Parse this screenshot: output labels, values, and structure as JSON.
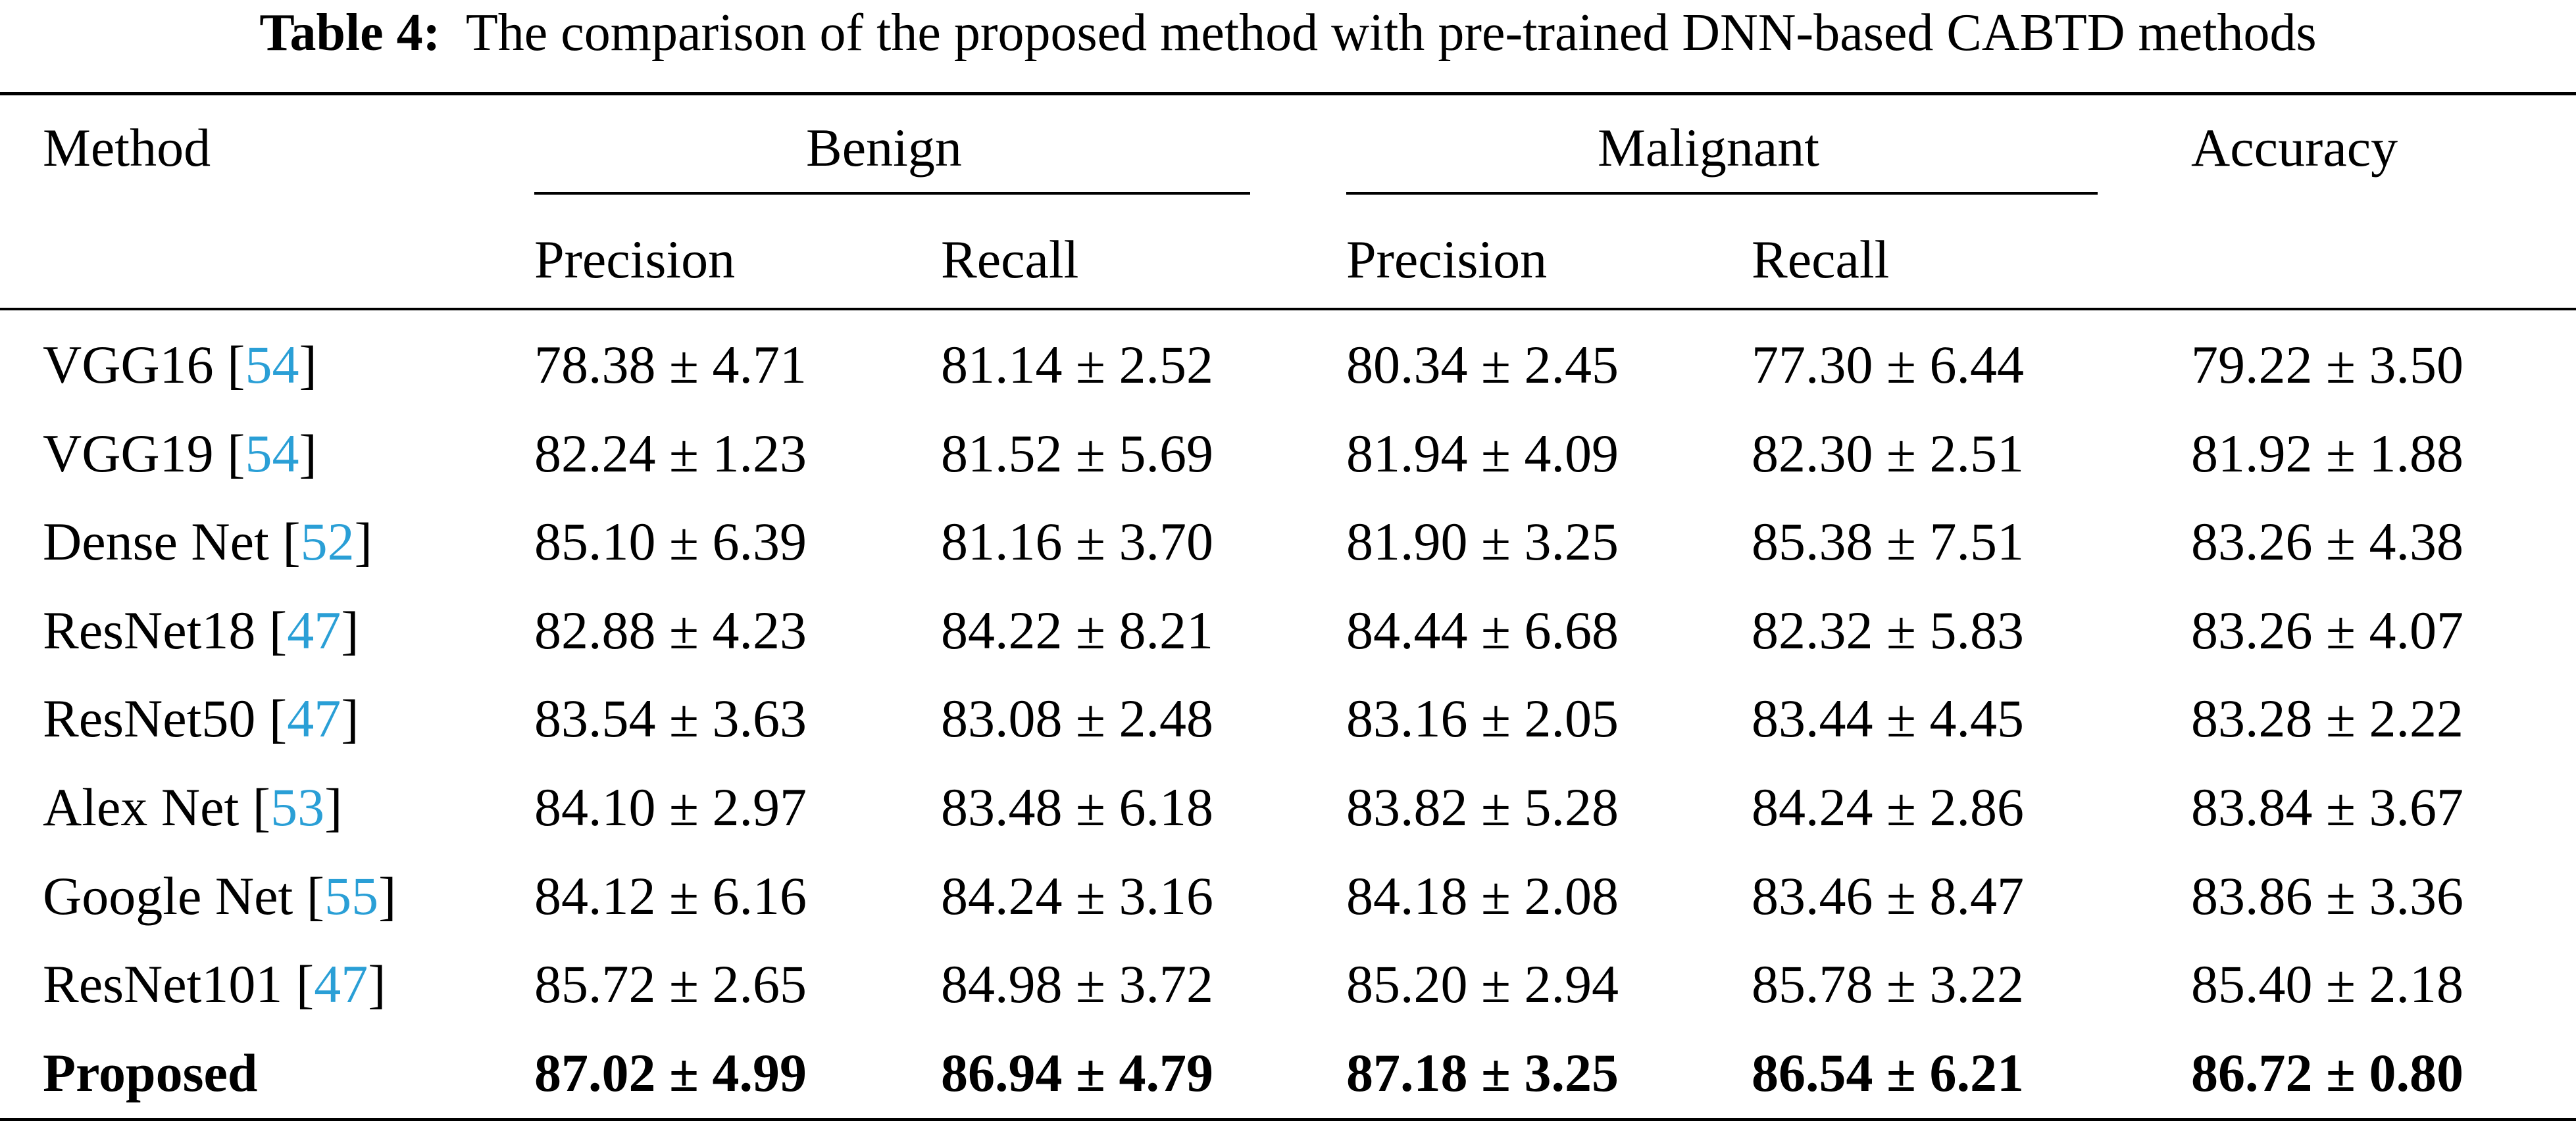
{
  "caption": {
    "label": "Table 4:",
    "text": "The comparison of the proposed method with pre-trained DNN-based CABTD methods"
  },
  "header": {
    "method": "Method",
    "benign": "Benign",
    "malignant": "Malignant",
    "accuracy": "Accuracy",
    "precision": "Precision",
    "recall": "Recall"
  },
  "rows": [
    {
      "method": "VGG16",
      "ref": "54",
      "b_precision": "78.38 ± 4.71",
      "b_recall": "81.14 ± 2.52",
      "m_precision": "80.34 ± 2.45",
      "m_recall": "77.30 ± 6.44",
      "accuracy": "79.22 ± 3.50",
      "bold": false
    },
    {
      "method": "VGG19",
      "ref": "54",
      "b_precision": "82.24 ± 1.23",
      "b_recall": "81.52 ± 5.69",
      "m_precision": "81.94 ± 4.09",
      "m_recall": "82.30 ± 2.51",
      "accuracy": "81.92 ± 1.88",
      "bold": false
    },
    {
      "method": "Dense Net",
      "ref": "52",
      "b_precision": "85.10 ± 6.39",
      "b_recall": "81.16 ± 3.70",
      "m_precision": "81.90 ± 3.25",
      "m_recall": "85.38 ± 7.51",
      "accuracy": "83.26 ± 4.38",
      "bold": false
    },
    {
      "method": "ResNet18",
      "ref": "47",
      "b_precision": "82.88 ± 4.23",
      "b_recall": "84.22 ± 8.21",
      "m_precision": "84.44 ± 6.68",
      "m_recall": "82.32 ± 5.83",
      "accuracy": "83.26 ± 4.07",
      "bold": false
    },
    {
      "method": "ResNet50",
      "ref": "47",
      "b_precision": "83.54 ± 3.63",
      "b_recall": "83.08 ± 2.48",
      "m_precision": "83.16 ± 2.05",
      "m_recall": "83.44 ± 4.45",
      "accuracy": "83.28 ± 2.22",
      "bold": false
    },
    {
      "method": "Alex Net",
      "ref": "53",
      "b_precision": "84.10 ± 2.97",
      "b_recall": "83.48 ± 6.18",
      "m_precision": "83.82 ± 5.28",
      "m_recall": "84.24 ± 2.86",
      "accuracy": "83.84 ± 3.67",
      "bold": false
    },
    {
      "method": "Google Net",
      "ref": "55",
      "b_precision": "84.12 ± 6.16",
      "b_recall": "84.24 ± 3.16",
      "m_precision": "84.18 ± 2.08",
      "m_recall": "83.46 ± 8.47",
      "accuracy": "83.86 ± 3.36",
      "bold": false
    },
    {
      "method": "ResNet101",
      "ref": "47",
      "b_precision": "85.72 ± 2.65",
      "b_recall": "84.98 ± 3.72",
      "m_precision": "85.20 ± 2.94",
      "m_recall": "85.78 ± 3.22",
      "accuracy": "85.40 ± 2.18",
      "bold": false
    },
    {
      "method": "Proposed",
      "ref": "",
      "b_precision": "87.02 ± 4.99",
      "b_recall": "86.94 ± 4.79",
      "m_precision": "87.18 ± 3.25",
      "m_recall": "86.54 ± 6.21",
      "accuracy": "86.72 ± 0.80",
      "bold": true
    }
  ]
}
